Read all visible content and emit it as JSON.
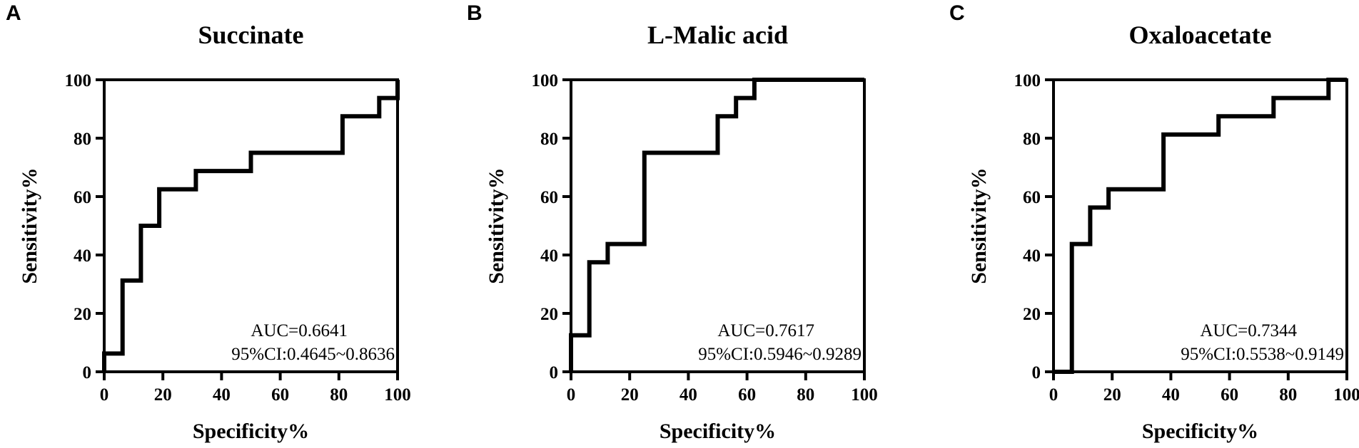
{
  "chart_data": [
    {
      "type": "line",
      "panel": "A",
      "title": "Succinate",
      "xlabel": "Specificity%",
      "ylabel": "Sensitivity%",
      "xlim": [
        0,
        100
      ],
      "ylim": [
        0,
        100
      ],
      "xticks": [
        "0",
        "20",
        "40",
        "60",
        "80",
        "100"
      ],
      "yticks": [
        "0",
        "20",
        "40",
        "60",
        "80",
        "100"
      ],
      "annotation": [
        "AUC=0.6641",
        "95%CI:0.4645~0.8636"
      ],
      "grid": false,
      "series": [
        {
          "x": [
            0,
            0,
            6.25,
            6.25,
            12.5,
            12.5,
            18.75,
            18.75,
            31.25,
            31.25,
            50,
            50,
            81.25,
            81.25,
            93.75,
            93.75,
            100,
            100
          ],
          "y": [
            0,
            6.25,
            6.25,
            31.25,
            31.25,
            50,
            50,
            62.5,
            62.5,
            68.75,
            68.75,
            75,
            75,
            87.5,
            87.5,
            93.75,
            93.75,
            100
          ]
        }
      ]
    },
    {
      "type": "line",
      "panel": "B",
      "title": "L-Malic acid",
      "xlabel": "Specificity%",
      "ylabel": "Sensitivity%",
      "xlim": [
        0,
        100
      ],
      "ylim": [
        0,
        100
      ],
      "xticks": [
        "0",
        "20",
        "40",
        "60",
        "80",
        "100"
      ],
      "yticks": [
        "0",
        "20",
        "40",
        "60",
        "80",
        "100"
      ],
      "annotation": [
        "AUC=0.7617",
        "95%CI:0.5946~0.9289"
      ],
      "grid": false,
      "series": [
        {
          "x": [
            0,
            0,
            6.25,
            6.25,
            12.5,
            12.5,
            25,
            25,
            50,
            50,
            56.25,
            56.25,
            62.5,
            62.5,
            100
          ],
          "y": [
            0,
            12.5,
            12.5,
            37.5,
            37.5,
            43.75,
            43.75,
            75,
            75,
            87.5,
            87.5,
            93.75,
            93.75,
            100,
            100
          ]
        }
      ]
    },
    {
      "type": "line",
      "panel": "C",
      "title": "Oxaloacetate",
      "xlabel": "Specificity%",
      "ylabel": "Sensitivity%",
      "xlim": [
        0,
        100
      ],
      "ylim": [
        0,
        100
      ],
      "xticks": [
        "0",
        "20",
        "40",
        "60",
        "80",
        "100"
      ],
      "yticks": [
        "0",
        "20",
        "40",
        "60",
        "80",
        "100"
      ],
      "annotation": [
        "AUC=0.7344",
        "95%CI:0.5538~0.9149"
      ],
      "grid": false,
      "series": [
        {
          "x": [
            0,
            6.25,
            6.25,
            12.5,
            12.5,
            18.75,
            18.75,
            37.5,
            37.5,
            56.25,
            56.25,
            75,
            75,
            93.75,
            93.75,
            100
          ],
          "y": [
            0,
            0,
            43.75,
            43.75,
            56.25,
            56.25,
            62.5,
            62.5,
            81.25,
            81.25,
            87.5,
            87.5,
            93.75,
            93.75,
            100,
            100
          ]
        }
      ]
    }
  ]
}
